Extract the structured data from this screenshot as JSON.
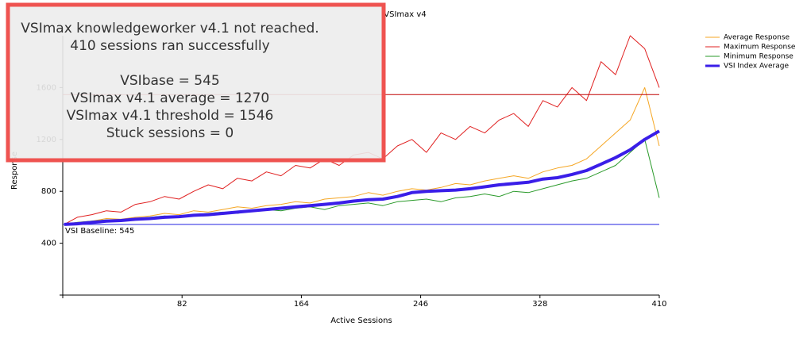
{
  "chart_data": {
    "type": "line",
    "title": "VSImax v4",
    "x_label": "Active Sessions",
    "y_label": "Response",
    "x": [
      1,
      10,
      20,
      30,
      40,
      50,
      60,
      70,
      80,
      90,
      100,
      110,
      120,
      130,
      140,
      150,
      160,
      170,
      180,
      190,
      200,
      210,
      220,
      230,
      240,
      250,
      260,
      270,
      280,
      290,
      300,
      310,
      320,
      330,
      340,
      350,
      360,
      370,
      380,
      390,
      400,
      410
    ],
    "series": [
      {
        "name": "Average Response",
        "color": "#f5a623",
        "width": 1,
        "values": [
          545,
          560,
          570,
          590,
          585,
          600,
          610,
          630,
          620,
          650,
          640,
          660,
          680,
          670,
          690,
          700,
          720,
          710,
          740,
          750,
          760,
          790,
          770,
          800,
          820,
          810,
          830,
          860,
          850,
          880,
          900,
          920,
          900,
          950,
          980,
          1000,
          1050,
          1150,
          1250,
          1350,
          1600,
          1150
        ]
      },
      {
        "name": "Maximum Response",
        "color": "#e02020",
        "width": 1,
        "values": [
          545,
          600,
          620,
          650,
          640,
          700,
          720,
          760,
          740,
          800,
          850,
          820,
          900,
          880,
          950,
          920,
          1000,
          980,
          1050,
          1000,
          1080,
          1100,
          1050,
          1150,
          1200,
          1100,
          1250,
          1200,
          1300,
          1250,
          1350,
          1400,
          1300,
          1500,
          1450,
          1600,
          1500,
          1800,
          1700,
          2000,
          1900,
          1600
        ]
      },
      {
        "name": "Minimum Response",
        "color": "#2a9a2a",
        "width": 1,
        "values": [
          545,
          560,
          570,
          580,
          575,
          590,
          600,
          610,
          600,
          620,
          630,
          640,
          630,
          650,
          660,
          650,
          670,
          680,
          660,
          690,
          700,
          710,
          690,
          720,
          730,
          740,
          720,
          750,
          760,
          780,
          760,
          800,
          790,
          820,
          850,
          880,
          900,
          950,
          1000,
          1100,
          1200,
          750
        ]
      },
      {
        "name": "VSI Index Average",
        "color": "#3a1ee8",
        "width": 4,
        "values": [
          545,
          550,
          560,
          570,
          575,
          585,
          590,
          600,
          605,
          615,
          620,
          630,
          640,
          650,
          660,
          670,
          680,
          690,
          700,
          710,
          725,
          735,
          740,
          760,
          790,
          800,
          805,
          810,
          820,
          835,
          850,
          860,
          870,
          895,
          905,
          930,
          960,
          1010,
          1060,
          1120,
          1200,
          1265
        ]
      }
    ],
    "xlim": [
      0,
      410
    ],
    "xticks": [
      82,
      164,
      246,
      328,
      410
    ],
    "ylim": [
      0,
      2000
    ],
    "yticks": [
      400,
      800,
      1200,
      1600
    ],
    "baseline": {
      "value": 545,
      "label": "VSI Baseline: 545",
      "color": "#2020e0"
    },
    "threshold": {
      "value": 1546,
      "color": "#c00000"
    },
    "legend": "top-right"
  },
  "summary": [
    "VSImax knowledgeworker v4.1 not reached.",
    "410 sessions ran successfully",
    "VSIbase = 545",
    "VSImax v4.1 average = 1270",
    "VSImax v4.1 threshold = 1546",
    "Stuck sessions = 0"
  ]
}
